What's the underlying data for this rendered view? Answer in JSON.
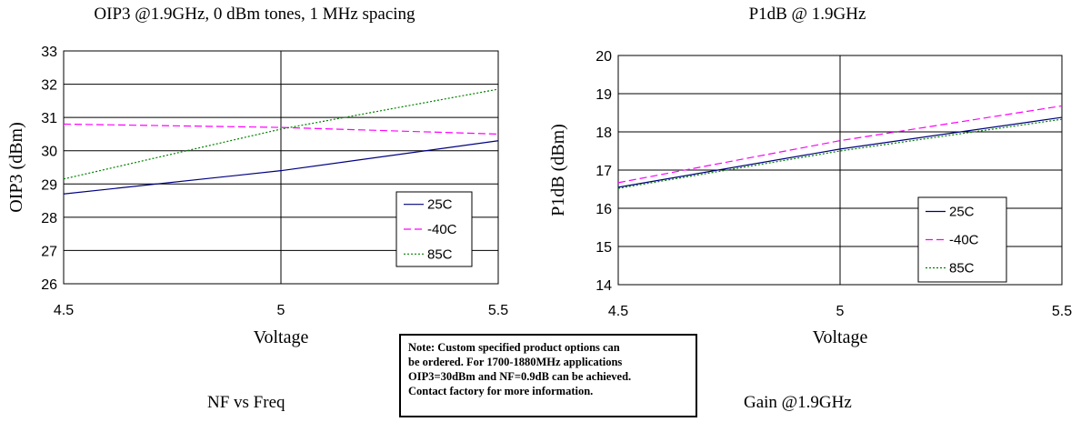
{
  "chart_data": [
    {
      "type": "line",
      "title": "OIP3 @1.9GHz, 0 dBm tones, 1 MHz spacing",
      "xlabel": "Voltage",
      "ylabel": "OIP3 (dBm)",
      "x": [
        4.5,
        5.0,
        5.5
      ],
      "x_ticks": [
        "4.5",
        "5",
        "5.5"
      ],
      "xlim": [
        4.5,
        5.5
      ],
      "ylim": [
        26,
        33
      ],
      "y_ticks": [
        "26",
        "27",
        "28",
        "29",
        "30",
        "31",
        "32",
        "33"
      ],
      "grid": true,
      "legend_position": "lower-right",
      "series": [
        {
          "name": "25C",
          "values": [
            28.7,
            29.4,
            30.3
          ],
          "color": "#000080",
          "dash": "solid"
        },
        {
          "name": "-40C",
          "values": [
            30.8,
            30.7,
            30.5
          ],
          "color": "#ff00ff",
          "dash": "dashed"
        },
        {
          "name": "85C",
          "values": [
            29.15,
            30.65,
            31.85
          ],
          "color": "#008000",
          "dash": "dotted"
        }
      ]
    },
    {
      "type": "line",
      "title": "P1dB  @ 1.9GHz",
      "xlabel": "Voltage",
      "ylabel": "P1dB  (dBm)",
      "x": [
        4.5,
        5.0,
        5.5
      ],
      "x_ticks": [
        "4.5",
        "5",
        "5.5"
      ],
      "xlim": [
        4.5,
        5.5
      ],
      "ylim": [
        14,
        20
      ],
      "y_ticks": [
        "14",
        "15",
        "16",
        "17",
        "18",
        "19",
        "20"
      ],
      "grid": true,
      "legend_position": "lower-right",
      "series": [
        {
          "name": "25C",
          "values": [
            16.55,
            17.55,
            18.38
          ],
          "color": "#000080",
          "dash": "solid"
        },
        {
          "name": "-40C",
          "values": [
            16.67,
            17.77,
            18.68
          ],
          "color": "#ff00ff",
          "dash": "dashed"
        },
        {
          "name": "85C",
          "values": [
            16.52,
            17.5,
            18.33
          ],
          "color": "#008000",
          "dash": "dotted"
        }
      ]
    }
  ],
  "note": {
    "text": "Note: Custom specified product options can\nbe ordered. For 1700-1880MHz applications\nOIP3=30dBm and NF=0.9dB can be achieved.\nContact factory for more information."
  },
  "lower_titles": {
    "nf": "NF  vs Freq",
    "gain": "Gain @1.9GHz"
  }
}
